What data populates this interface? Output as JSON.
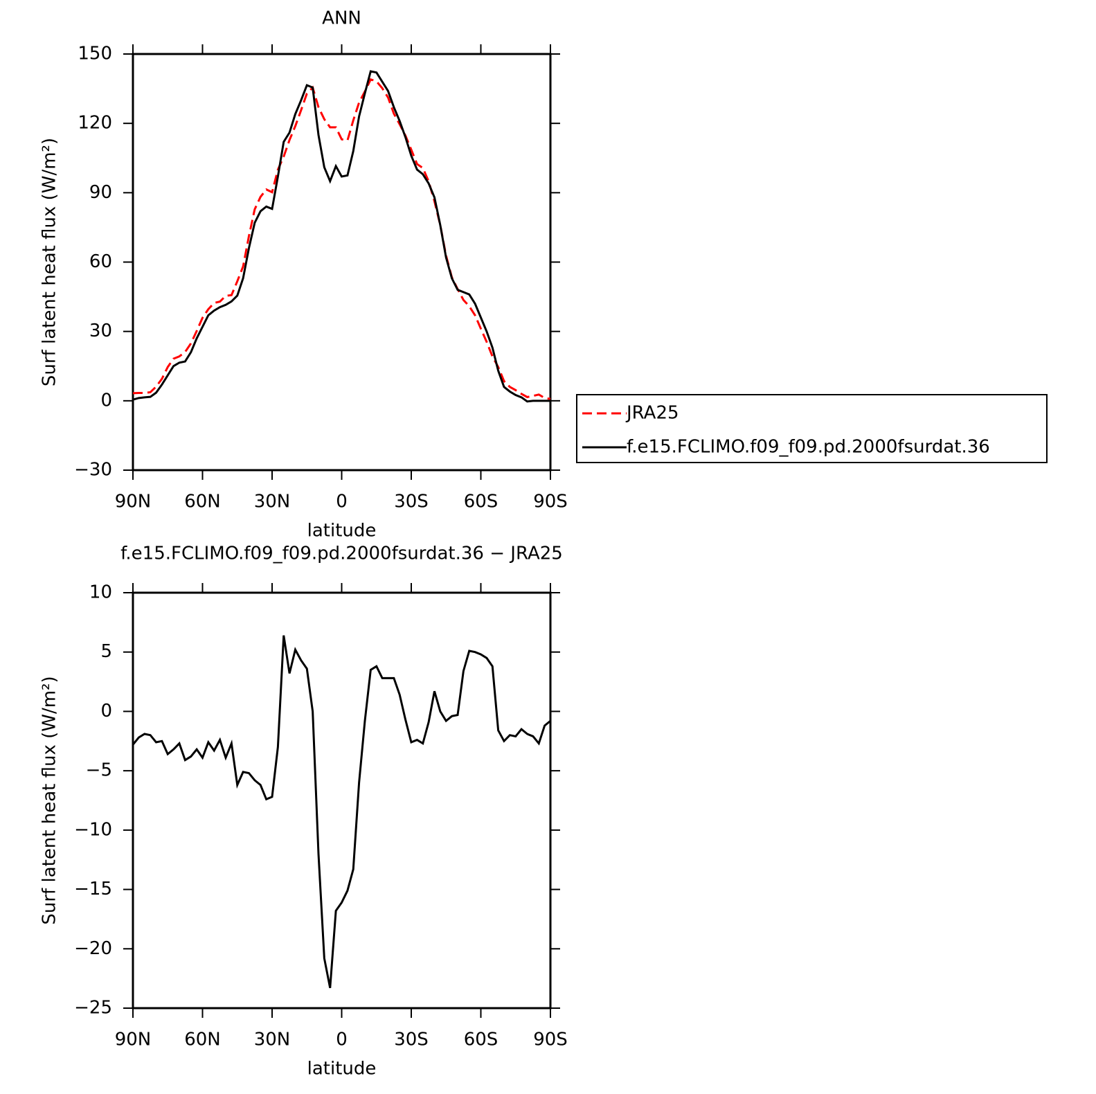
{
  "chart_data": [
    {
      "type": "line",
      "title": "ANN",
      "xlabel": "latitude",
      "ylabel": "Surf latent heat flux (W/m²)",
      "xlim": [
        90,
        -90
      ],
      "ylim": [
        -30,
        150
      ],
      "xticks": [
        {
          "value": 90,
          "label": "90N"
        },
        {
          "value": 60,
          "label": "60N"
        },
        {
          "value": 30,
          "label": "30N"
        },
        0,
        {
          "value": -30,
          "label": "30S"
        },
        {
          "value": -60,
          "label": "60S"
        },
        {
          "value": -90,
          "label": "90S"
        }
      ],
      "yticks": [
        {
          "value": -30,
          "label": "−30"
        },
        0,
        30,
        60,
        90,
        120,
        150
      ],
      "legend": "outside-right",
      "x": [
        90,
        87.5,
        85,
        82.5,
        80,
        77.5,
        75,
        72.5,
        70,
        67.5,
        65,
        62.5,
        60,
        57.5,
        55,
        52.5,
        50,
        47.5,
        45,
        42.5,
        40,
        37.5,
        35,
        32.5,
        30,
        27.5,
        25,
        22.5,
        20,
        17.5,
        15,
        12.5,
        10,
        7.5,
        5,
        2.5,
        0,
        -2.5,
        -5,
        -7.5,
        -10,
        -12.5,
        -15,
        -17.5,
        -20,
        -22.5,
        -25,
        -27.5,
        -30,
        -32.5,
        -35,
        -37.5,
        -40,
        -42.5,
        -45,
        -47.5,
        -50,
        -52.5,
        -55,
        -57.5,
        -60,
        -62.5,
        -65,
        -67.5,
        -70,
        -72.5,
        -75,
        -77.5,
        -80,
        -82.5,
        -85,
        -87.5,
        -90
      ],
      "series": [
        {
          "name": "JRA25",
          "color": "#ff0000",
          "dash": true,
          "values": [
            3.3,
            3.4,
            3.4,
            3.7,
            6.1,
            9.5,
            14.6,
            18.2,
            19.2,
            21.1,
            24.8,
            30.2,
            35.9,
            39.6,
            42.3,
            42.9,
            45.4,
            45.7,
            51.7,
            58.1,
            71.2,
            82.8,
            88.2,
            91.4,
            90.2,
            100,
            105.6,
            112.8,
            118.8,
            125.7,
            132.9,
            135.5,
            127,
            121.8,
            118.3,
            118.3,
            113.1,
            112.6,
            121.3,
            129,
            133.8,
            139,
            138.2,
            135.2,
            131.2,
            124.2,
            119.6,
            114.7,
            108.6,
            102.4,
            100.7,
            94.9,
            86.3,
            76,
            62.8,
            53.4,
            48.3,
            43.6,
            40.9,
            37,
            31.2,
            25.5,
            19.2,
            14.6,
            8.5,
            6,
            4.6,
            3,
            1.6,
            2.1,
            2.7,
            1.2,
            0.8
          ]
        },
        {
          "name": "f.e15.FCLIMO.f09_f09.pd.2000fsurdat.36",
          "color": "#000000",
          "dash": false,
          "values": [
            0.5,
            1.2,
            1.5,
            1.7,
            3.5,
            7,
            11,
            15,
            16.5,
            17,
            21,
            27,
            32,
            37,
            39,
            40.5,
            41.5,
            43,
            45.5,
            53,
            66,
            77,
            82,
            84,
            83,
            97,
            112,
            116,
            124,
            130,
            136.5,
            135.5,
            115,
            101,
            95,
            101.5,
            97,
            97.5,
            108,
            123,
            133,
            142.5,
            142,
            138,
            134,
            127,
            121,
            114,
            106,
            100,
            98,
            94,
            88,
            76,
            62,
            53,
            48,
            47,
            46,
            42,
            36,
            30,
            23,
            13,
            6,
            4,
            2.5,
            1.5,
            -0.3,
            0,
            0,
            0,
            0
          ]
        }
      ]
    },
    {
      "type": "line",
      "title": "f.e15.FCLIMO.f09_f09.pd.2000fsurdat.36 − JRA25",
      "xlabel": "latitude",
      "ylabel": "Surf latent heat flux (W/m²)",
      "xlim": [
        90,
        -90
      ],
      "ylim": [
        -25,
        10
      ],
      "xticks": [
        {
          "value": 90,
          "label": "90N"
        },
        {
          "value": 60,
          "label": "60N"
        },
        {
          "value": 30,
          "label": "30N"
        },
        0,
        {
          "value": -30,
          "label": "30S"
        },
        {
          "value": -60,
          "label": "60S"
        },
        {
          "value": -90,
          "label": "90S"
        }
      ],
      "yticks": [
        {
          "value": -25,
          "label": "−25"
        },
        {
          "value": -20,
          "label": "−20"
        },
        {
          "value": -15,
          "label": "−15"
        },
        {
          "value": -10,
          "label": "−10"
        },
        {
          "value": -5,
          "label": "−5"
        },
        0,
        5,
        10
      ],
      "x": [
        90,
        87.5,
        85,
        82.5,
        80,
        77.5,
        75,
        72.5,
        70,
        67.5,
        65,
        62.5,
        60,
        57.5,
        55,
        52.5,
        50,
        47.5,
        45,
        42.5,
        40,
        37.5,
        35,
        32.5,
        30,
        27.5,
        25,
        22.5,
        20,
        17.5,
        15,
        12.5,
        10,
        7.5,
        5,
        2.5,
        0,
        -2.5,
        -5,
        -7.5,
        -10,
        -12.5,
        -15,
        -17.5,
        -20,
        -22.5,
        -25,
        -27.5,
        -30,
        -32.5,
        -35,
        -37.5,
        -40,
        -42.5,
        -45,
        -47.5,
        -50,
        -52.5,
        -55,
        -57.5,
        -60,
        -62.5,
        -65,
        -67.5,
        -70,
        -72.5,
        -75,
        -77.5,
        -80,
        -82.5,
        -85,
        -87.5,
        -90
      ],
      "series": [
        {
          "color": "#000000",
          "dash": false,
          "values": [
            -2.8,
            -2.2,
            -1.9,
            -2,
            -2.6,
            -2.5,
            -3.6,
            -3.2,
            -2.7,
            -4.1,
            -3.8,
            -3.2,
            -3.9,
            -2.6,
            -3.3,
            -2.4,
            -3.9,
            -2.7,
            -6.2,
            -5.1,
            -5.2,
            -5.8,
            -6.2,
            -7.4,
            -7.2,
            -3,
            6.4,
            3.2,
            5.2,
            4.3,
            3.6,
            0,
            -12,
            -20.8,
            -23.3,
            -16.8,
            -16.1,
            -15.1,
            -13.3,
            -6,
            -0.8,
            3.5,
            3.8,
            2.8,
            2.8,
            2.8,
            1.4,
            -0.7,
            -2.6,
            -2.4,
            -2.7,
            -0.9,
            1.7,
            0,
            -0.8,
            -0.4,
            -0.3,
            3.4,
            5.1,
            5,
            4.8,
            4.5,
            3.8,
            -1.6,
            -2.5,
            -2,
            -2.1,
            -1.5,
            -1.9,
            -2.1,
            -2.7,
            -1.2,
            -0.8
          ]
        }
      ]
    }
  ]
}
